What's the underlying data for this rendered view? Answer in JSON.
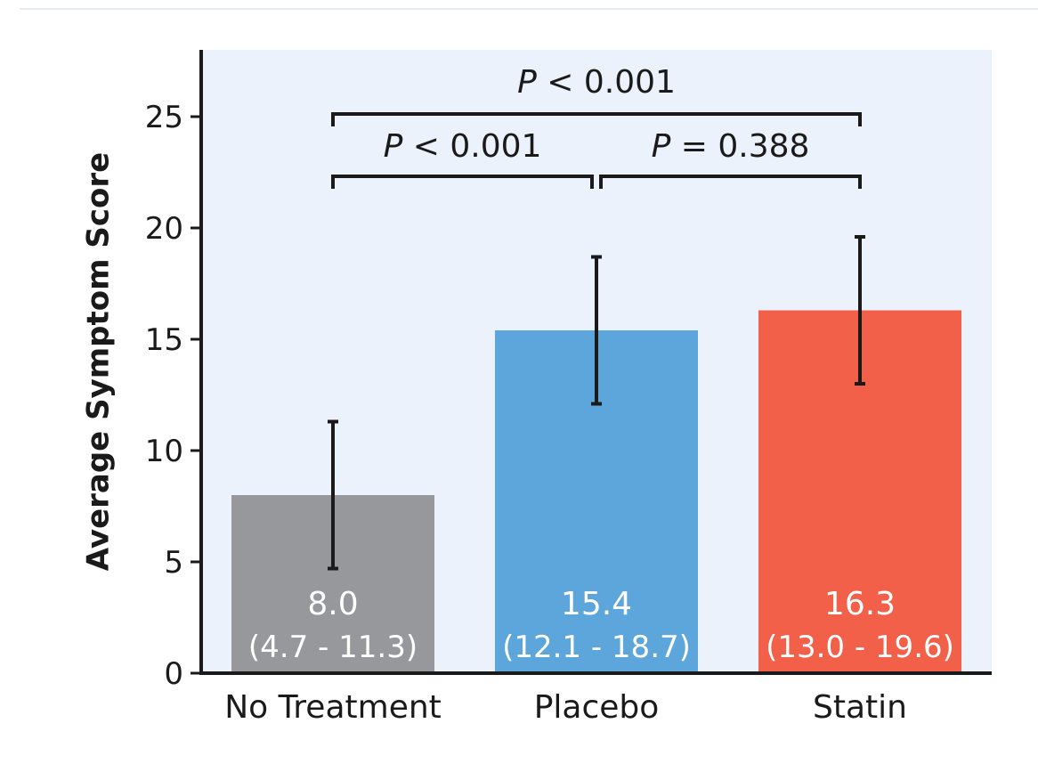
{
  "chart_data": {
    "type": "bar",
    "ylabel": "Average Symptom Score",
    "xlabel": "",
    "ylim": [
      0,
      28
    ],
    "yticks": [
      0,
      5,
      10,
      15,
      20,
      25
    ],
    "grid": false,
    "categories": [
      "No Treatment",
      "Placebo",
      "Statin"
    ],
    "values": [
      8.0,
      15.4,
      16.3
    ],
    "error_low": [
      4.7,
      12.1,
      13.0
    ],
    "error_high": [
      11.3,
      18.7,
      19.6
    ],
    "value_labels": [
      "8.0",
      "15.4",
      "16.3"
    ],
    "ci_labels": [
      "(4.7 - 11.3)",
      "(12.1 - 18.7)",
      "(13.0 - 19.6)"
    ],
    "colors": [
      "#97989b",
      "#5da6dc",
      "#f26049"
    ],
    "plot_background": "#ebf2fb",
    "comparisons": [
      {
        "from": 0,
        "to": 2,
        "p_symbol": "P",
        "p_text": " < 0.001",
        "level": 2
      },
      {
        "from": 0,
        "to": 1,
        "p_symbol": "P",
        "p_text": " < 0.001",
        "level": 1
      },
      {
        "from": 1,
        "to": 2,
        "p_symbol": "P",
        "p_text": " = 0.388",
        "level": 1
      }
    ]
  }
}
